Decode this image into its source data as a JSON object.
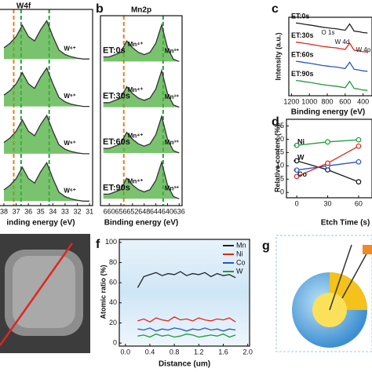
{
  "chart_data": [
    {
      "type": "line",
      "title": "W4f",
      "xlabel": "inding energy (eV)",
      "x": [
        38,
        37.5,
        37,
        36.5,
        36,
        35.5,
        35,
        34.5,
        34,
        33.5,
        33,
        32.5,
        32,
        31.5,
        31
      ],
      "xlim": [
        38.45,
        30.75
      ],
      "xticks": [
        38,
        37,
        36,
        35,
        34,
        33,
        32,
        31
      ],
      "ylim": [
        0,
        4.35
      ],
      "fill": "#4caf3f",
      "vlines": [
        {
          "value": 37.2,
          "color": "#e67e22"
        },
        {
          "value": 36.6,
          "color": "#22a03a"
        },
        {
          "value": 34.3,
          "color": "#22a03a"
        }
      ],
      "series": [
        {
          "color": "#333333",
          "labels": [
            "W⁶⁺"
          ],
          "values": [
            3.5,
            3.6,
            3.75,
            4.0,
            3.75,
            3.65,
            3.9,
            4.1,
            3.75,
            3.45,
            3.35,
            3.3,
            3.27,
            3.25,
            3.25
          ]
        },
        {
          "color": "#333333",
          "labels": [
            "W⁶⁺"
          ],
          "values": [
            2.45,
            2.55,
            2.7,
            2.95,
            2.7,
            2.6,
            2.85,
            3.05,
            2.7,
            2.4,
            2.3,
            2.25,
            2.22,
            2.2,
            2.2
          ]
        },
        {
          "color": "#333333",
          "labels": [
            "W⁶⁺"
          ],
          "values": [
            1.4,
            1.5,
            1.65,
            1.9,
            1.65,
            1.55,
            1.8,
            2.0,
            1.65,
            1.35,
            1.25,
            1.2,
            1.17,
            1.15,
            1.15
          ]
        },
        {
          "color": "#333333",
          "labels": [
            "W⁶⁺"
          ],
          "values": [
            0.35,
            0.45,
            0.6,
            0.85,
            0.6,
            0.5,
            0.75,
            0.95,
            0.6,
            0.3,
            0.2,
            0.15,
            0.12,
            0.1,
            0.1
          ]
        }
      ]
    },
    {
      "type": "line",
      "panel_label": "b",
      "title": "Mn2p",
      "xlabel": "Binding energy (eV)",
      "x": [
        662,
        660,
        658,
        656,
        654,
        652,
        650,
        648,
        646,
        644,
        642,
        640,
        638,
        636
      ],
      "xlim": [
        663,
        635
      ],
      "xticks": [
        660,
        656,
        652,
        648,
        644,
        640,
        636
      ],
      "ylim": [
        0,
        4.15
      ],
      "fill": "#4caf3f",
      "legend": "inline",
      "vlines": [
        {
          "value": 655,
          "color": "#e67e22"
        },
        {
          "value": 641.5,
          "color": "#22a03a"
        }
      ],
      "series": [
        {
          "name": "ET:0s",
          "color": "#333333",
          "labels": [
            "Mn⁴⁺",
            "Mn³⁺"
          ],
          "values": [
            3.25,
            3.25,
            3.3,
            3.35,
            3.6,
            3.45,
            3.35,
            3.3,
            3.35,
            3.55,
            3.95,
            3.45,
            3.2,
            3.15
          ]
        },
        {
          "name": "ET:30s",
          "color": "#333333",
          "labels": [
            "Mn⁴⁺",
            "Mn³⁺"
          ],
          "values": [
            2.25,
            2.25,
            2.3,
            2.35,
            2.6,
            2.45,
            2.35,
            2.3,
            2.35,
            2.55,
            2.95,
            2.45,
            2.2,
            2.15
          ]
        },
        {
          "name": "ET:60s",
          "color": "#333333",
          "labels": [
            "Mn⁴⁺",
            "Mn³⁺"
          ],
          "values": [
            1.25,
            1.25,
            1.3,
            1.35,
            1.6,
            1.45,
            1.35,
            1.3,
            1.35,
            1.55,
            1.95,
            1.45,
            1.2,
            1.15
          ]
        },
        {
          "name": "ET:90s",
          "color": "#333333",
          "labels": [
            "Mn⁴⁺",
            "Mn³⁺"
          ],
          "values": [
            0.25,
            0.25,
            0.3,
            0.35,
            0.6,
            0.45,
            0.35,
            0.3,
            0.35,
            0.55,
            0.95,
            0.45,
            0.2,
            0.15
          ]
        }
      ]
    },
    {
      "type": "line",
      "panel_label": "c",
      "xlabel": "Binding energy (eV)",
      "ylabel": "Intensity (a.u.)",
      "x": [
        1150,
        1100,
        1050,
        1000,
        950,
        900,
        850,
        800,
        750,
        700,
        650,
        600,
        550,
        500,
        450,
        400,
        350
      ],
      "xlim": [
        1230,
        300
      ],
      "xticks": [
        1200,
        1000,
        800,
        600,
        400
      ],
      "ylim": [
        0.2,
        4.3
      ],
      "legend": "inline",
      "annotations": [
        "O 1s",
        "W 4d",
        "W 4p"
      ],
      "series": [
        {
          "name": "ET:0s",
          "color": "#222222",
          "values": [
            4.0,
            3.97,
            3.93,
            3.9,
            3.86,
            3.82,
            3.78,
            3.75,
            3.72,
            3.7,
            3.66,
            3.62,
            3.95,
            3.58,
            3.55,
            3.5,
            3.48
          ]
        },
        {
          "name": "ET:30s",
          "color": "#e0261f",
          "values": [
            3.0,
            2.97,
            2.93,
            2.9,
            2.86,
            2.82,
            2.78,
            2.75,
            2.72,
            2.7,
            2.66,
            2.62,
            2.95,
            2.58,
            2.55,
            2.5,
            2.48
          ]
        },
        {
          "name": "ET:60s",
          "color": "#2456c8",
          "values": [
            2.0,
            1.97,
            1.93,
            1.9,
            1.86,
            1.82,
            1.78,
            1.75,
            1.72,
            1.7,
            1.66,
            1.62,
            1.95,
            1.58,
            1.55,
            1.5,
            1.48
          ]
        },
        {
          "name": "ET:90s",
          "color": "#1f9a3c",
          "values": [
            1.0,
            0.97,
            0.93,
            0.9,
            0.86,
            0.82,
            0.78,
            0.75,
            0.72,
            0.7,
            0.66,
            0.62,
            0.95,
            0.58,
            0.55,
            0.5,
            0.48
          ]
        }
      ]
    },
    {
      "type": "line",
      "panel_label": "d",
      "xlabel": "Etch Time (s)",
      "ylabel": "Relative content (%)",
      "x": [
        0,
        30,
        60
      ],
      "xlim": [
        -10,
        73
      ],
      "xticks": [
        0,
        30,
        60
      ],
      "ylim": [
        -2,
        27.5
      ],
      "yticks": [
        0,
        5,
        10,
        15,
        20,
        25
      ],
      "markers": true,
      "legend": "arrows",
      "series": [
        {
          "name": "Ni",
          "color": "#1f9a3c",
          "values": [
            17.7,
            19,
            19.8
          ]
        },
        {
          "name": "W",
          "color": "#111111",
          "values": [
            11.9,
            8.5,
            4
          ]
        },
        {
          "name": "Co",
          "color": "#2456c8",
          "values": [
            8.4,
            10,
            11.5
          ]
        },
        {
          "color": "#e0261f",
          "values": [
            6,
            11,
            17.4
          ]
        }
      ]
    },
    {
      "type": "line",
      "panel_label": "f",
      "xlabel": "Distance (um)",
      "ylabel": "Atomic ratio (%)",
      "x": [
        0.2,
        0.3,
        0.4,
        0.5,
        0.6,
        0.7,
        0.8,
        0.9,
        1.0,
        1.1,
        1.2,
        1.3,
        1.4,
        1.5,
        1.6,
        1.7,
        1.8
      ],
      "xlim": [
        -0.1,
        2.03
      ],
      "xticks": [
        {
          "value": 0,
          "label": "0.0"
        },
        0.4,
        0.8,
        1.2,
        1.6,
        {
          "value": 2,
          "label": "2.0"
        }
      ],
      "ylim": [
        -3,
        103
      ],
      "yticks": [
        0,
        20,
        40,
        60,
        80,
        100
      ],
      "legend": "upper right",
      "series": [
        {
          "name": "Mn",
          "color": "#222222",
          "values": [
            55,
            66,
            68,
            70,
            67,
            69,
            68,
            71,
            67,
            69,
            68,
            70,
            66,
            69,
            67,
            68,
            65
          ]
        },
        {
          "name": "Ni",
          "color": "#e0261f",
          "values": [
            22,
            24,
            21,
            25,
            23,
            22,
            26,
            23,
            24,
            22,
            25,
            23,
            22,
            24,
            23,
            25,
            21
          ]
        },
        {
          "name": "Co",
          "color": "#2456c8",
          "values": [
            14,
            13,
            15,
            12,
            14,
            13,
            15,
            14,
            12,
            14,
            13,
            15,
            13,
            14,
            12,
            14,
            13
          ]
        },
        {
          "name": "W",
          "color": "#1f9a3c",
          "values": [
            7,
            8,
            6,
            9,
            7,
            8,
            6,
            7,
            9,
            8,
            6,
            7,
            8,
            7,
            9,
            6,
            8
          ]
        }
      ]
    }
  ],
  "extra_labels": [
    "g"
  ]
}
